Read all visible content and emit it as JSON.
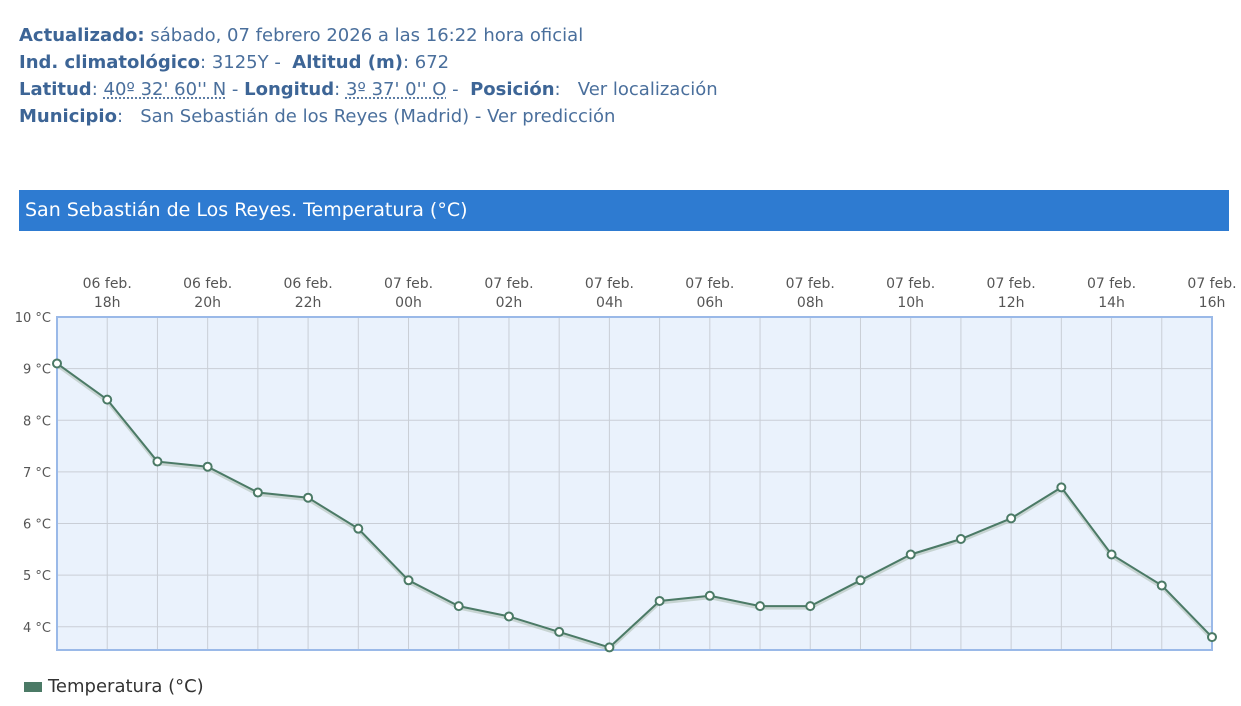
{
  "info": {
    "updated_label": "Actualizado:",
    "updated_value": "sábado, 07 febrero 2026 a las 16:22 hora oficial",
    "climate_label": "Ind. climatológico",
    "climate_value": "3125Y",
    "altitude_label": "Altitud (m)",
    "altitude_value": "672",
    "lat_label": "Latitud",
    "lat_value": "40º 32' 60'' N",
    "lon_label": "Longitud",
    "lon_value": "3º 37' 0'' O",
    "pos_label": "Posición",
    "pos_link": "Ver localización",
    "mun_label": "Municipio",
    "mun_value": "San Sebastián de los Reyes (Madrid)",
    "mun_link": "Ver predicción"
  },
  "chart_header": "San Sebastián de Los Reyes. Temperatura (°C)",
  "colors": {
    "header": "#2e7bd1",
    "line": "#4b7a66",
    "plot_bg": "#eaf2fc",
    "border": "#9ab9e8"
  },
  "chart_data": {
    "type": "line",
    "title": "San Sebastián de Los Reyes. Temperatura (°C)",
    "x": [
      "06 feb. 17h",
      "06 feb. 18h",
      "06 feb. 19h",
      "06 feb. 20h",
      "06 feb. 21h",
      "06 feb. 22h",
      "06 feb. 23h",
      "07 feb. 00h",
      "07 feb. 01h",
      "07 feb. 02h",
      "07 feb. 03h",
      "07 feb. 04h",
      "07 feb. 05h",
      "07 feb. 06h",
      "07 feb. 07h",
      "07 feb. 08h",
      "07 feb. 09h",
      "07 feb. 10h",
      "07 feb. 11h",
      "07 feb. 12h",
      "07 feb. 13h",
      "07 feb. 14h",
      "07 feb. 15h",
      "07 feb. 16h"
    ],
    "x_tick_labels": [
      {
        "date": "06 feb.",
        "hour": "18h"
      },
      {
        "date": "06 feb.",
        "hour": "20h"
      },
      {
        "date": "06 feb.",
        "hour": "22h"
      },
      {
        "date": "07 feb.",
        "hour": "00h"
      },
      {
        "date": "07 feb.",
        "hour": "02h"
      },
      {
        "date": "07 feb.",
        "hour": "04h"
      },
      {
        "date": "07 feb.",
        "hour": "06h"
      },
      {
        "date": "07 feb.",
        "hour": "08h"
      },
      {
        "date": "07 feb.",
        "hour": "10h"
      },
      {
        "date": "07 feb.",
        "hour": "12h"
      },
      {
        "date": "07 feb.",
        "hour": "14h"
      },
      {
        "date": "07 feb.",
        "hour": "16h"
      }
    ],
    "series": [
      {
        "name": "Temperatura (°C)",
        "values": [
          9.1,
          8.4,
          7.2,
          7.1,
          6.6,
          6.5,
          5.9,
          4.9,
          4.4,
          4.2,
          3.9,
          3.6,
          4.5,
          4.6,
          4.4,
          4.4,
          4.9,
          5.4,
          5.7,
          6.1,
          6.7,
          5.4,
          4.8,
          3.8
        ]
      }
    ],
    "y_ticks": [
      "10 °C",
      "9 °C",
      "8 °C",
      "7 °C",
      "6 °C",
      "5 °C",
      "4 °C"
    ],
    "ylim": [
      3.55,
      10
    ],
    "grid": true,
    "legend": "bottom-left"
  }
}
